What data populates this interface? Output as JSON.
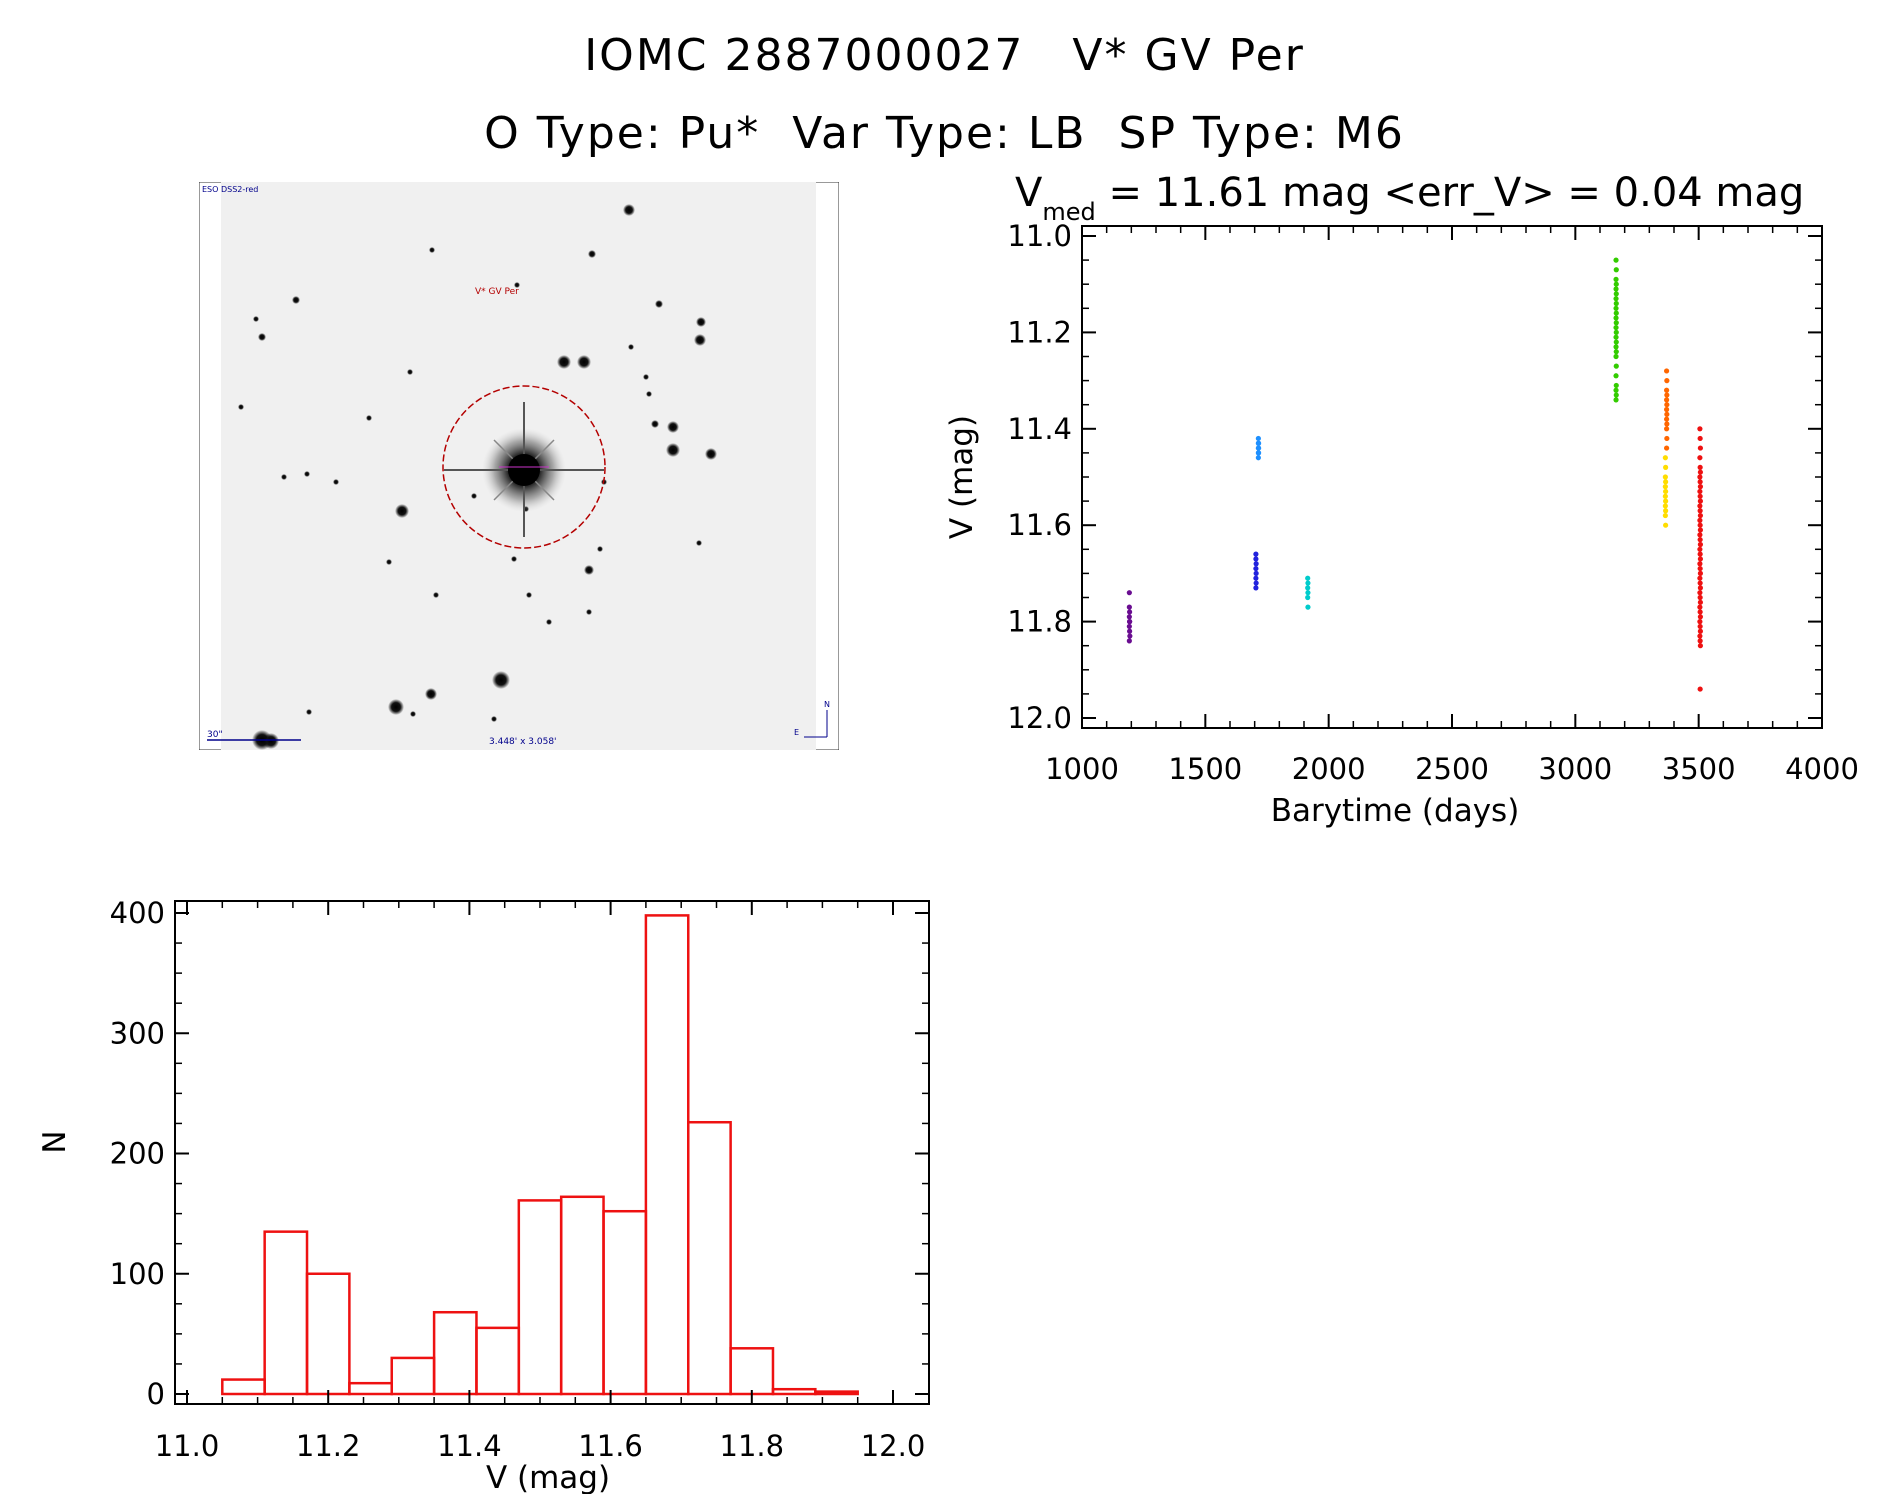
{
  "header": {
    "line1": "IOMC 2887000027   V* GV Per",
    "line2": "O Type: Pu*  Var Type: LB  SP Type: M6"
  },
  "finder": {
    "survey_label": "ESO DSS2-red",
    "object_label": "V* GV Per",
    "scale_label": "30\"",
    "fov_label": "3.448' x 3.058'",
    "north_label": "N",
    "east_label": "E",
    "circle_color": "#b40000",
    "label_color": "#00008b"
  },
  "chart_data": [
    {
      "type": "scatter",
      "title": "V_med = 11.61 mag <err_V> = 0.04 mag",
      "title_main": "V",
      "title_sub": "med",
      "title_rest": " = 11.61 mag <err_V> = 0.04 mag",
      "xlabel": "Barytime (days)",
      "ylabel": "V (mag)",
      "xlim": [
        1000,
        4000
      ],
      "ylim": [
        12.0,
        11.0
      ],
      "y_inverted": true,
      "xticks": [
        1000,
        1500,
        2000,
        2500,
        3000,
        3500,
        4000
      ],
      "yticks": [
        11.0,
        11.2,
        11.4,
        11.6,
        11.8,
        12.0
      ],
      "xtick_labels": [
        "1000",
        "1500",
        "2000",
        "2500",
        "3000",
        "3500",
        "4000"
      ],
      "ytick_labels": [
        "11.0",
        "11.2",
        "11.4",
        "11.6",
        "11.8",
        "12.0"
      ],
      "series": [
        {
          "color": "#6a0d91",
          "x": [
            1192,
            1192,
            1193,
            1192,
            1193,
            1192,
            1193,
            1194,
            1192,
            1193
          ],
          "y": [
            11.74,
            11.77,
            11.78,
            11.79,
            11.8,
            11.81,
            11.82,
            11.83,
            11.84,
            11.8
          ]
        },
        {
          "color": "#2222dd",
          "x": [
            1705,
            1705,
            1706,
            1705,
            1706,
            1705,
            1706,
            1705
          ],
          "y": [
            11.66,
            11.67,
            11.68,
            11.69,
            11.7,
            11.71,
            11.72,
            11.73
          ]
        },
        {
          "color": "#1e90ff",
          "x": [
            1715,
            1715,
            1716,
            1715,
            1716,
            1715,
            1716,
            1715
          ],
          "y": [
            11.42,
            11.43,
            11.43,
            11.44,
            11.44,
            11.45,
            11.45,
            11.46
          ]
        },
        {
          "color": "#00cccc",
          "x": [
            1915,
            1916,
            1915,
            1916,
            1915,
            1916
          ],
          "y": [
            11.71,
            11.72,
            11.73,
            11.74,
            11.75,
            11.77
          ]
        },
        {
          "color": "#33cc00",
          "x": [
            3165,
            3166,
            3165,
            3166,
            3165,
            3166,
            3165,
            3166,
            3165,
            3166,
            3165,
            3166,
            3165,
            3166,
            3165,
            3166,
            3165,
            3166,
            3165,
            3166,
            3165,
            3166,
            3165,
            3166,
            3165
          ],
          "y": [
            11.05,
            11.07,
            11.09,
            11.1,
            11.11,
            11.12,
            11.13,
            11.14,
            11.15,
            11.16,
            11.17,
            11.18,
            11.19,
            11.2,
            11.21,
            11.22,
            11.23,
            11.24,
            11.25,
            11.27,
            11.29,
            11.31,
            11.32,
            11.33,
            11.34
          ]
        },
        {
          "color": "#ff6600",
          "x": [
            3370,
            3371,
            3370,
            3371,
            3370,
            3371,
            3370,
            3371,
            3370,
            3371,
            3370,
            3371,
            3370
          ],
          "y": [
            11.28,
            11.3,
            11.32,
            11.33,
            11.34,
            11.35,
            11.36,
            11.37,
            11.38,
            11.39,
            11.4,
            11.42,
            11.44
          ]
        },
        {
          "color": "#ffdd00",
          "x": [
            3365,
            3366,
            3365,
            3366,
            3365,
            3366,
            3365,
            3366,
            3365,
            3366,
            3365,
            3366
          ],
          "y": [
            11.46,
            11.48,
            11.5,
            11.51,
            11.52,
            11.53,
            11.54,
            11.55,
            11.56,
            11.57,
            11.58,
            11.6
          ]
        },
        {
          "color": "#ee1111",
          "x": [
            3505,
            3506,
            3507,
            3505,
            3506,
            3507,
            3505,
            3506,
            3507,
            3505,
            3506,
            3507,
            3505,
            3506,
            3507,
            3505,
            3506,
            3507,
            3505,
            3506,
            3507,
            3505,
            3506,
            3507,
            3505,
            3506,
            3507,
            3505,
            3506,
            3507,
            3505,
            3506,
            3507,
            3505,
            3506,
            3507,
            3505,
            3506,
            3507,
            3505,
            3506,
            3507,
            3506
          ],
          "y": [
            11.4,
            11.42,
            11.44,
            11.46,
            11.48,
            11.49,
            11.5,
            11.51,
            11.52,
            11.53,
            11.54,
            11.55,
            11.56,
            11.57,
            11.58,
            11.59,
            11.6,
            11.61,
            11.62,
            11.63,
            11.64,
            11.65,
            11.66,
            11.67,
            11.68,
            11.69,
            11.7,
            11.71,
            11.72,
            11.73,
            11.74,
            11.75,
            11.76,
            11.77,
            11.78,
            11.79,
            11.8,
            11.81,
            11.82,
            11.83,
            11.84,
            11.85,
            11.94
          ]
        }
      ]
    },
    {
      "type": "bar",
      "xlabel": "V (mag)",
      "ylabel": "N",
      "xlim": [
        11.0,
        12.0
      ],
      "ylim": [
        0,
        400
      ],
      "xticks": [
        11.0,
        11.2,
        11.4,
        11.6,
        11.8,
        12.0
      ],
      "yticks": [
        0,
        100,
        200,
        300,
        400
      ],
      "xtick_labels": [
        "11.0",
        "11.2",
        "11.4",
        "11.6",
        "11.8",
        "12.0"
      ],
      "ytick_labels": [
        "0",
        "100",
        "200",
        "300",
        "400"
      ],
      "bar_color": "#ee1111",
      "bin_edges": [
        11.05,
        11.11,
        11.17,
        11.23,
        11.29,
        11.35,
        11.41,
        11.47,
        11.53,
        11.59,
        11.65,
        11.71,
        11.77,
        11.83,
        11.89,
        11.95
      ],
      "counts": [
        12,
        135,
        100,
        9,
        30,
        68,
        55,
        161,
        164,
        152,
        398,
        226,
        38,
        4,
        2
      ]
    }
  ]
}
